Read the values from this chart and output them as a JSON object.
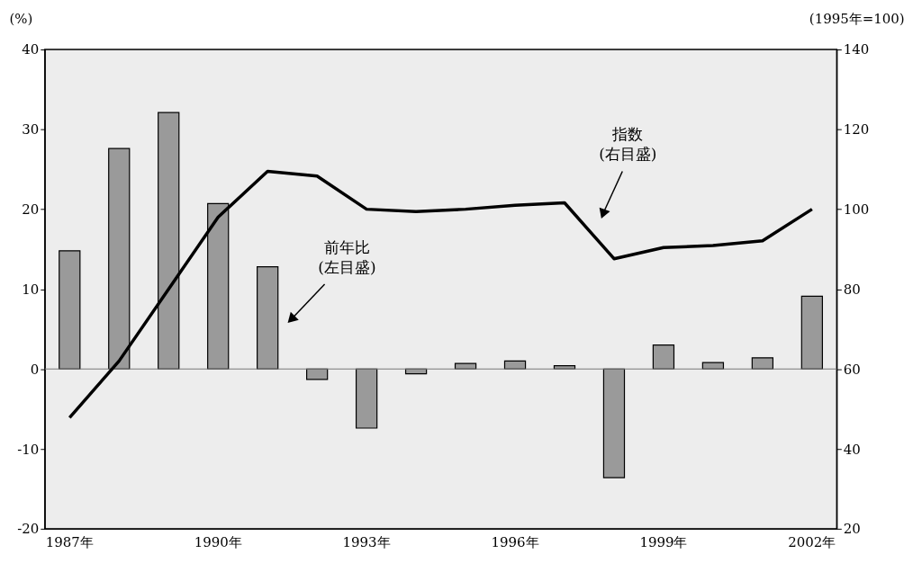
{
  "chart_data": {
    "type": "bar",
    "categories": [
      "1987年",
      null,
      null,
      "1990年",
      null,
      null,
      "1993年",
      null,
      null,
      "1996年",
      null,
      null,
      "1999年",
      null,
      null,
      "2002年"
    ],
    "ylabel": "(%)",
    "y2label": "(1995年=100)",
    "series": [
      {
        "color": "#9a9a9a",
        "values": [
          14.8,
          27.6,
          32.1,
          20.7,
          12.8,
          -1.3,
          -7.4,
          -0.6,
          0.7,
          1.0,
          0.4,
          -13.6,
          3.0,
          0.8,
          1.4,
          9.1
        ]
      },
      {
        "type": "line",
        "axis": "y2",
        "color": "#000000",
        "values": [
          47.8,
          62,
          80,
          98,
          109.5,
          108.3,
          100,
          99.4,
          100,
          101,
          101.6,
          87.6,
          90.4,
          90.9,
          92.1,
          100
        ]
      }
    ],
    "ylim": [
      -20,
      40
    ],
    "yticks": [
      -20,
      -10,
      0,
      10,
      20,
      30,
      40
    ],
    "y2lim": [
      20,
      140
    ],
    "y2ticks": [
      20,
      40,
      60,
      80,
      100,
      120,
      140
    ],
    "ref_lines": [
      {
        "axis": "y",
        "value": 0,
        "color": "#777777"
      }
    ],
    "annotations": [
      "前年比\n(左目盛)",
      "指数\n(右目盛)"
    ],
    "grid": false,
    "line_style": "solid",
    "marker": "none"
  }
}
